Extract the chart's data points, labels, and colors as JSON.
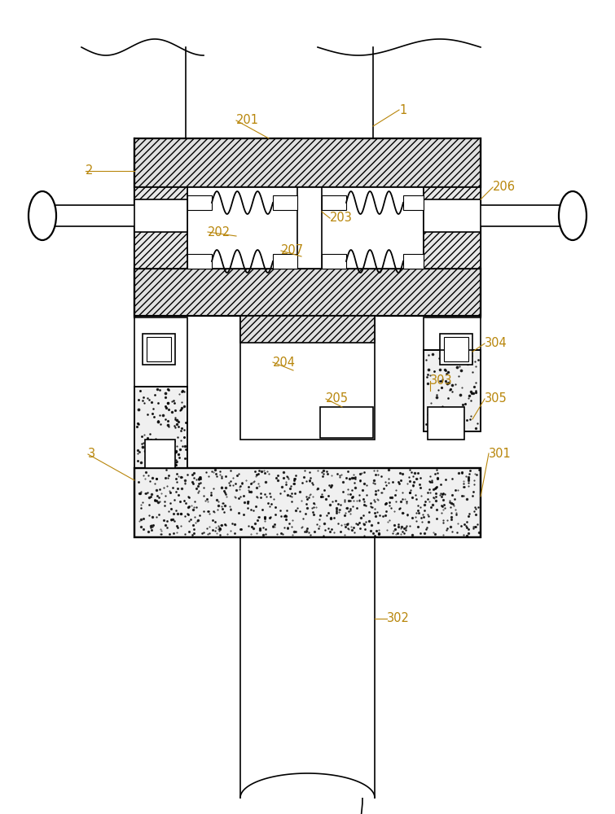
{
  "bg_color": "#ffffff",
  "line_color": "#000000",
  "label_color": "#b8860b",
  "label_fontsize": 10.5,
  "hatch_color": "#555555"
}
